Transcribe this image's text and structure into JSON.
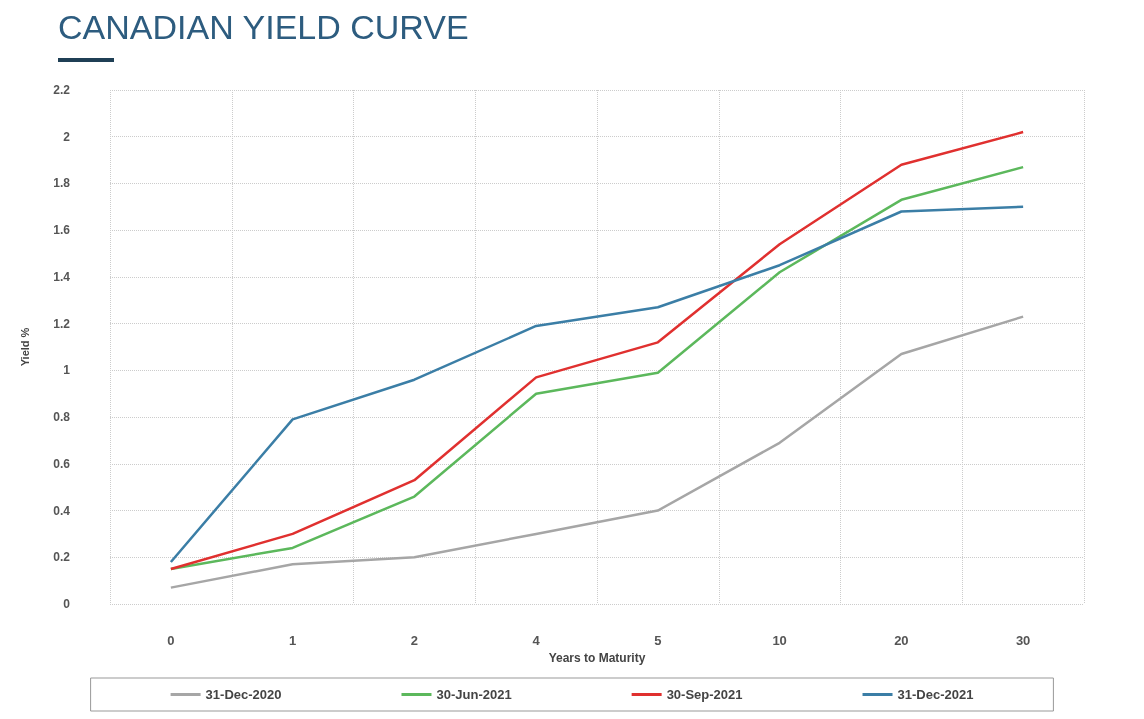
{
  "chart_data": {
    "type": "line",
    "title": "CANADIAN YIELD CURVE",
    "xlabel": "Years to Maturity",
    "ylabel": "Yield %",
    "categories": [
      "0",
      "1",
      "2",
      "4",
      "5",
      "10",
      "20",
      "30"
    ],
    "series": [
      {
        "name": "31-Dec-2020",
        "color": "#a6a6a6",
        "values": [
          0.07,
          0.17,
          0.2,
          0.3,
          0.4,
          0.69,
          1.07,
          1.23
        ]
      },
      {
        "name": "30-Jun-2021",
        "color": "#5cb85c",
        "values": [
          0.15,
          0.24,
          0.46,
          0.9,
          0.99,
          1.42,
          1.73,
          1.87
        ]
      },
      {
        "name": "30-Sep-2021",
        "color": "#e0302f",
        "values": [
          0.15,
          0.3,
          0.53,
          0.97,
          1.12,
          1.54,
          1.88,
          2.02
        ]
      },
      {
        "name": "31-Dec-2021",
        "color": "#3b7ea6",
        "values": [
          0.18,
          0.79,
          0.96,
          1.19,
          1.27,
          1.45,
          1.68,
          1.7
        ]
      }
    ],
    "ylim": [
      0,
      2.2
    ],
    "yticks": [
      0,
      0.2,
      0.4,
      0.6,
      0.8,
      1,
      1.2,
      1.4,
      1.6,
      1.8,
      2,
      2.2
    ],
    "grid": true,
    "legend": "bottom",
    "marker": "none",
    "line_style": "solid"
  }
}
